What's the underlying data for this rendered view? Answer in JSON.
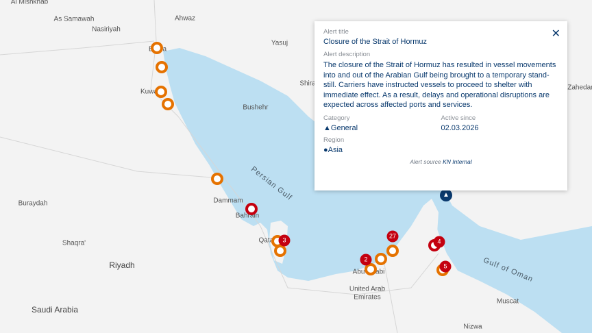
{
  "map": {
    "colors": {
      "water": "#bcdff2",
      "land": "#f3f3f3",
      "port_marker": "#e57200",
      "alert_marker": "#c4000f",
      "accent": "#0a3a6e"
    },
    "places": [
      "Al Mishkhab",
      "As Samawah",
      "Nasiriyah",
      "Ahwaz",
      "Yasuj",
      "Basra",
      "Kuwait",
      "Bushehr",
      "Shira",
      "Zahedan",
      "Buraydah",
      "Shaqra'",
      "Riyadh",
      "Saudi Arabia",
      "Dammam",
      "Bahrain",
      "Qatar",
      "Abu Dhabi",
      "United Arab",
      "Emirates",
      "Muscat",
      "Nizwa"
    ],
    "water": [
      "Persian Gulf",
      "Gulf of Oman"
    ],
    "clusters": [
      "3",
      "2",
      "27",
      "4",
      "5"
    ]
  },
  "popup": {
    "title_label": "Alert title",
    "title": "Closure of the Strait of Hormuz",
    "description_label": "Alert description",
    "description": "The closure of the Strait of Hormuz has resulted in vessel movements into and out of the Arabian Gulf being brought to a temporary stand-still. Carriers have instructed vessels to proceed to shelter with immediate effect. As a result, delays and operational disruptions are expected across affected ports and services.",
    "category_label": "Category",
    "category": "General",
    "active_since_label": "Active since",
    "active_since": "02.03.2026",
    "region_label": "Region",
    "region": "Asia",
    "source_prefix": "Alert source",
    "source": "KN Internal",
    "close_icon": "close-icon"
  }
}
